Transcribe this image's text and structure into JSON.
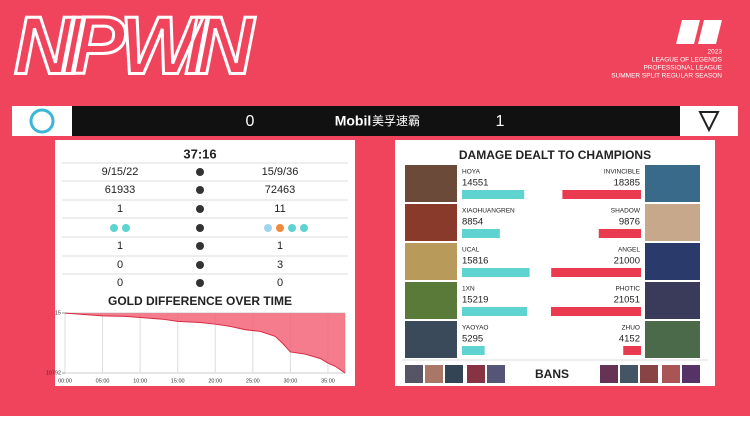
{
  "header": {
    "title": "NIP WIN",
    "logo_lines": [
      "2023",
      "LEAGUE OF LEGENDS",
      "PROFESSIONAL LEAGUE",
      "SUMMER SPLIT REGULAR SEASON"
    ]
  },
  "scoreboard": {
    "left_score": "0",
    "sponsor": "Mobil",
    "sponsor_cn": "美孚速霸",
    "right_score": "1"
  },
  "stats": {
    "time": "37:16",
    "rows": [
      [
        "9/15/22",
        "15/9/36"
      ],
      [
        "61933",
        "72463"
      ],
      [
        "1",
        "11"
      ],
      [
        "1",
        "1"
      ],
      [
        "0",
        "3"
      ],
      [
        "0",
        "0"
      ]
    ]
  },
  "gold_chart": {
    "type": "area",
    "title": "GOLD DIFFERENCE OVER TIME",
    "x": [
      0,
      3,
      5,
      8,
      10,
      13,
      15,
      18,
      20,
      22,
      24,
      26,
      28,
      29,
      30,
      32,
      34,
      35,
      36,
      37.27
    ],
    "values": [
      0,
      -300,
      -500,
      -600,
      -800,
      -1100,
      -1500,
      -1700,
      -2000,
      -2400,
      -3000,
      -3300,
      -4200,
      -5500,
      -7000,
      -7400,
      -8200,
      -9000,
      -9600,
      -10792
    ],
    "color": "#f25b70",
    "xlim": [
      0,
      37.27
    ],
    "xticks": [
      {
        "value": 0,
        "label": "00:00"
      },
      {
        "value": 5,
        "label": "05:00"
      },
      {
        "value": 10,
        "label": "10:00"
      },
      {
        "value": 15,
        "label": "15:00"
      },
      {
        "value": 20,
        "label": "20:00"
      },
      {
        "value": 25,
        "label": "25:00"
      },
      {
        "value": 30,
        "label": "30:00"
      },
      {
        "value": 35,
        "label": "35:00"
      }
    ],
    "ylim": [
      -10792,
      15
    ],
    "yticks": [
      15,
      {
        "value": -10792,
        "label": "10792"
      }
    ]
  },
  "damage": {
    "title": "DAMAGE DEALT TO CHAMPIONS",
    "left": {
      "color": "#5fd3cf",
      "players": [
        {
          "name": "HOYA",
          "value": 14551
        },
        {
          "name": "XIAOHUANGREN",
          "value": 8854
        },
        {
          "name": "UCAL",
          "value": 15816
        },
        {
          "name": "1XN",
          "value": 15219
        },
        {
          "name": "YAOYAO",
          "value": 5295
        }
      ]
    },
    "right": {
      "color": "#ea3a50",
      "players": [
        {
          "name": "INVINCIBLE",
          "value": 18385
        },
        {
          "name": "SHADOW",
          "value": 9876
        },
        {
          "name": "ANGEL",
          "value": 21000
        },
        {
          "name": "PHOTIC",
          "value": 21051
        },
        {
          "name": "ZHUO",
          "value": 4152
        }
      ]
    }
  },
  "bans": {
    "label": "BANS"
  }
}
